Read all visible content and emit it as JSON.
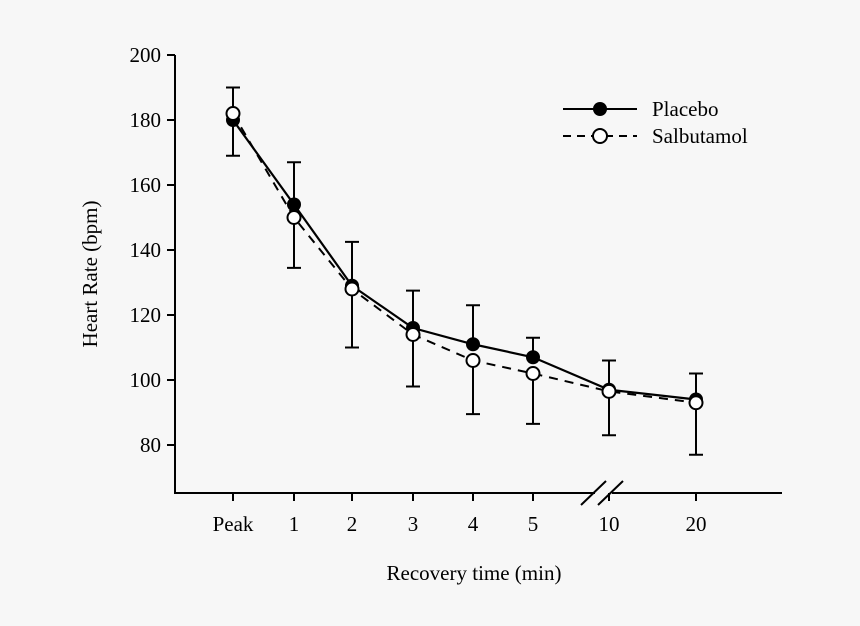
{
  "chart_data": {
    "type": "line",
    "title": "",
    "xlabel": "Recovery time (min)",
    "ylabel": "Heart Rate (bpm)",
    "ylim": [
      65,
      200
    ],
    "yticks": [
      80,
      100,
      120,
      140,
      160,
      180,
      200
    ],
    "categories": [
      "Peak",
      "1",
      "2",
      "3",
      "4",
      "5",
      "10",
      "20"
    ],
    "axis_break_between": [
      "5",
      "10"
    ],
    "grid": false,
    "legend_position": "top-right",
    "series": [
      {
        "name": "Placebo",
        "marker": "filled-circle",
        "line": "solid",
        "color": "#000000",
        "values": [
          180,
          154,
          129,
          116,
          111,
          107,
          97,
          94
        ],
        "error_upper": [
          190,
          167,
          142.5,
          127.5,
          123,
          113,
          106,
          102
        ]
      },
      {
        "name": "Salbutamol",
        "marker": "open-circle",
        "line": "dashed",
        "color": "#000000",
        "values": [
          182,
          150,
          128,
          114,
          106,
          102,
          96.5,
          93
        ],
        "error_lower": [
          169,
          134.5,
          110,
          98,
          89.5,
          86.5,
          83,
          77
        ]
      }
    ]
  }
}
